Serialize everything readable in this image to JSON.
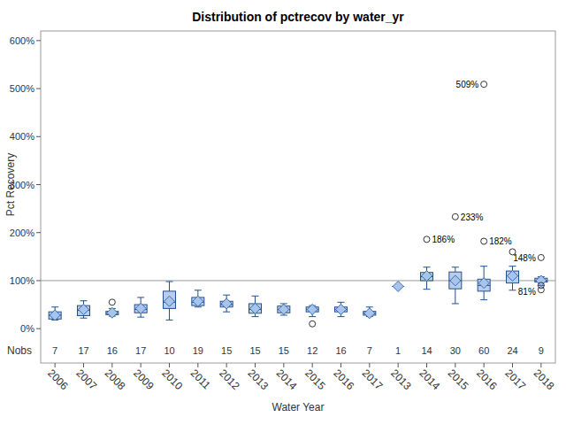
{
  "chart_data": {
    "type": "box",
    "title": "Distribution of pctrecov by water_yr",
    "x_label": "Water Year",
    "y_label": "Pct Recovery",
    "nobs_label": "Nobs",
    "categories": [
      "2006",
      "2007",
      "2008",
      "2009",
      "2010",
      "2011",
      "2012",
      "2013",
      "2014",
      "2015",
      "2016",
      "2017",
      "2013",
      "2014",
      "2015",
      "2016",
      "2017",
      "2018"
    ],
    "boxes": [
      {
        "min": 18,
        "q1": 20,
        "median": 28,
        "q3": 35,
        "max": 45,
        "mean": 28,
        "outliers": [],
        "outlier_labels": []
      },
      {
        "min": 22,
        "q1": 27,
        "median": 38,
        "q3": 48,
        "max": 58,
        "mean": 40,
        "outliers": [],
        "outlier_labels": []
      },
      {
        "min": 26,
        "q1": 29,
        "median": 32,
        "q3": 36,
        "max": 42,
        "mean": 33,
        "outliers": [
          55
        ],
        "outlier_labels": [
          null
        ]
      },
      {
        "min": 24,
        "q1": 33,
        "median": 40,
        "q3": 50,
        "max": 65,
        "mean": 42,
        "outliers": [],
        "outlier_labels": []
      },
      {
        "min": 18,
        "q1": 42,
        "median": 55,
        "q3": 78,
        "max": 98,
        "mean": 57,
        "outliers": [],
        "outlier_labels": []
      },
      {
        "min": 45,
        "q1": 48,
        "median": 55,
        "q3": 65,
        "max": 80,
        "mean": 57,
        "outliers": [],
        "outlier_labels": []
      },
      {
        "min": 35,
        "q1": 45,
        "median": 50,
        "q3": 57,
        "max": 70,
        "mean": 52,
        "outliers": [],
        "outlier_labels": []
      },
      {
        "min": 25,
        "q1": 32,
        "median": 40,
        "q3": 52,
        "max": 68,
        "mean": 42,
        "outliers": [],
        "outlier_labels": []
      },
      {
        "min": 28,
        "q1": 33,
        "median": 40,
        "q3": 47,
        "max": 52,
        "mean": 40,
        "outliers": [],
        "outlier_labels": []
      },
      {
        "min": 25,
        "q1": 35,
        "median": 40,
        "q3": 45,
        "max": 48,
        "mean": 40,
        "outliers": [
          10
        ],
        "outlier_labels": [
          null
        ]
      },
      {
        "min": 25,
        "q1": 35,
        "median": 40,
        "q3": 45,
        "max": 55,
        "mean": 40,
        "outliers": [],
        "outlier_labels": []
      },
      {
        "min": 25,
        "q1": 28,
        "median": 32,
        "q3": 36,
        "max": 45,
        "mean": 32,
        "outliers": [],
        "outlier_labels": []
      },
      {
        "min": 88,
        "q1": 88,
        "median": 88,
        "q3": 88,
        "max": 88,
        "mean": 88,
        "outliers": [],
        "outlier_labels": []
      },
      {
        "min": 82,
        "q1": 100,
        "median": 108,
        "q3": 117,
        "max": 128,
        "mean": 110,
        "outliers": [
          186
        ],
        "outlier_labels": [
          "186%"
        ]
      },
      {
        "min": 52,
        "q1": 83,
        "median": 100,
        "q3": 118,
        "max": 128,
        "mean": 100,
        "outliers": [
          233
        ],
        "outlier_labels": [
          "233%"
        ]
      },
      {
        "min": 60,
        "q1": 78,
        "median": 90,
        "q3": 103,
        "max": 130,
        "mean": 95,
        "outliers": [
          182,
          509
        ],
        "outlier_labels": [
          "182%",
          "509%"
        ]
      },
      {
        "min": 80,
        "q1": 95,
        "median": 110,
        "q3": 120,
        "max": 130,
        "mean": 110,
        "outliers": [
          160
        ],
        "outlier_labels": [
          null
        ]
      },
      {
        "min": 90,
        "q1": 97,
        "median": 100,
        "q3": 105,
        "max": 108,
        "mean": 100,
        "outliers": [
          148,
          90,
          81
        ],
        "outlier_labels": [
          "148%",
          null,
          "81%"
        ]
      }
    ],
    "nobs": [
      7,
      17,
      16,
      17,
      10,
      19,
      15,
      15,
      15,
      12,
      16,
      7,
      1,
      14,
      30,
      60,
      24,
      9
    ],
    "reference_line": 100,
    "color": "#b9cde8",
    "ylim": [
      -20,
      620
    ],
    "yticks": [
      {
        "value": 0,
        "label": "0%"
      },
      {
        "value": 100,
        "label": "100%"
      },
      {
        "value": 200,
        "label": "200%"
      },
      {
        "value": 300,
        "label": "300%"
      },
      {
        "value": 400,
        "label": "400%"
      },
      {
        "value": 500,
        "label": "500%"
      },
      {
        "value": 600,
        "label": "600%"
      }
    ],
    "grid": false
  }
}
